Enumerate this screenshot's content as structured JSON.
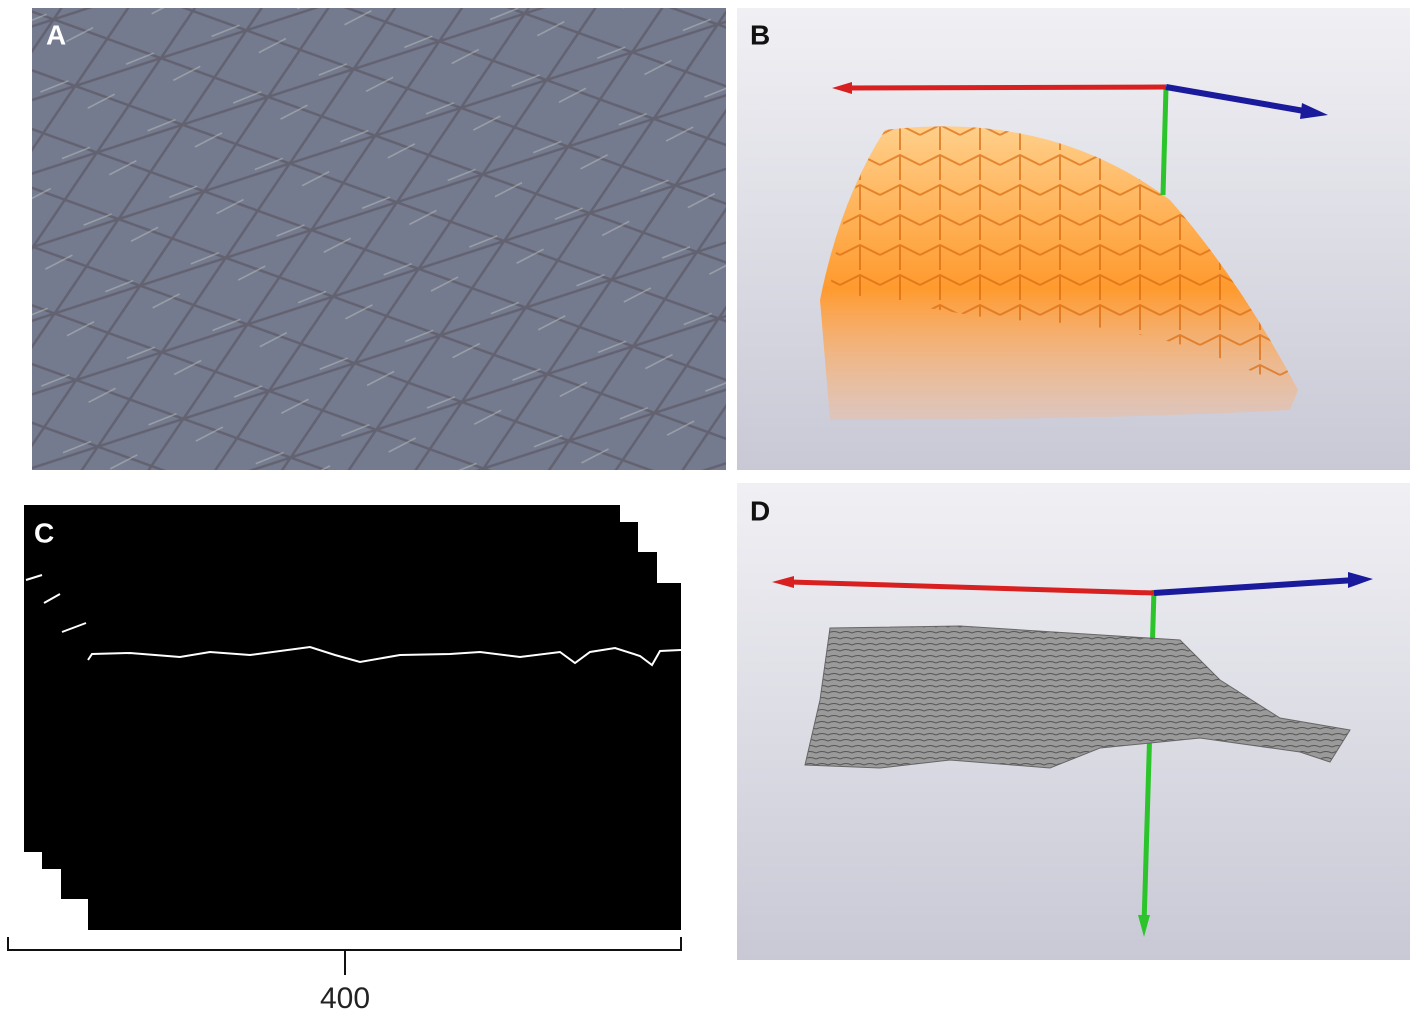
{
  "panels": [
    {
      "label": "A"
    },
    {
      "label": "B"
    },
    {
      "label": "C"
    },
    {
      "label": "D"
    }
  ],
  "scale_bar": {
    "label": "400"
  }
}
